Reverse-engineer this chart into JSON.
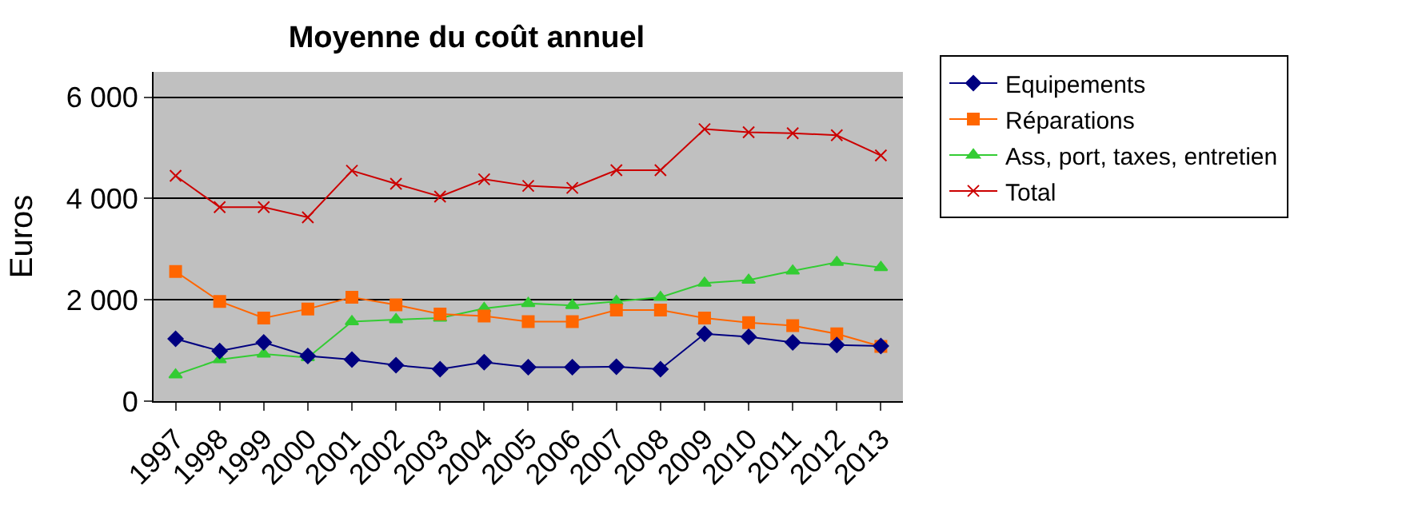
{
  "chart_data": {
    "type": "line",
    "title": "Moyenne du coût annuel",
    "ylabel": "Euros",
    "categories": [
      "1997",
      "1998",
      "1999",
      "2000",
      "2001",
      "2002",
      "2003",
      "2004",
      "2005",
      "2006",
      "2007",
      "2008",
      "2009",
      "2010",
      "2011",
      "2012",
      "2013"
    ],
    "series": [
      {
        "name": "Equipements",
        "color": "#000080",
        "marker": "diamond",
        "values": [
          1230,
          990,
          1160,
          890,
          820,
          710,
          630,
          770,
          670,
          670,
          680,
          630,
          1330,
          1270,
          1160,
          1110,
          1090
        ]
      },
      {
        "name": "Réparations",
        "color": "#ff6600",
        "marker": "square",
        "values": [
          2560,
          1970,
          1640,
          1820,
          2050,
          1900,
          1720,
          1680,
          1570,
          1570,
          1800,
          1800,
          1640,
          1550,
          1490,
          1330,
          1080
        ]
      },
      {
        "name": "Ass, port, taxes, entretien",
        "color": "#33cc33",
        "marker": "triangle",
        "values": [
          520,
          820,
          930,
          860,
          1570,
          1610,
          1640,
          1830,
          1930,
          1890,
          1970,
          2050,
          2330,
          2390,
          2570,
          2740,
          2640
        ]
      },
      {
        "name": "Total",
        "color": "#cc0000",
        "marker": "cross",
        "values": [
          4450,
          3830,
          3830,
          3630,
          4550,
          4290,
          4040,
          4380,
          4250,
          4210,
          4560,
          4560,
          5370,
          5310,
          5290,
          5250,
          4850
        ]
      }
    ],
    "ylim": [
      0,
      6500
    ],
    "yticks": [
      {
        "value": 0,
        "label": "0"
      },
      {
        "value": 2000,
        "label": "2 000"
      },
      {
        "value": 4000,
        "label": "4 000"
      },
      {
        "value": 6000,
        "label": "6 000"
      }
    ],
    "grid": "y",
    "legend": "right"
  }
}
